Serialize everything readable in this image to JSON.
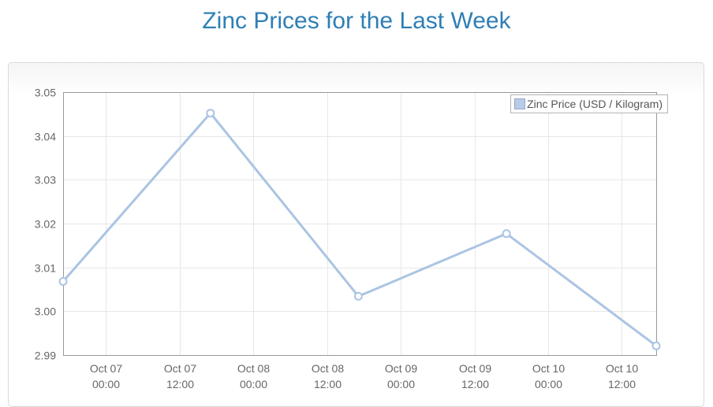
{
  "page": {
    "title": "Zinc Prices for the Last Week"
  },
  "colors": {
    "title_text": "#2e7fb5",
    "line": "#abc4e3",
    "marker_fill": "#ffffff",
    "marker_stroke": "#abc4e3",
    "legend_swatch_fill": "#b8cbe8",
    "legend_swatch_border": "#93a9c9",
    "gridline": "#e7e7e7",
    "plot_border": "#999999",
    "axis_text": "#666666",
    "panel_border": "#d9d9d9"
  },
  "chart_data": {
    "type": "line",
    "title": "Zinc Prices for the Last Week",
    "xlabel": "",
    "ylabel": "",
    "grid": true,
    "legend_position": "top-right",
    "y_axis": {
      "min": 2.99,
      "max": 3.05,
      "tick_step": 0.01,
      "tick_labels": [
        "3.05",
        "3.04",
        "3.03",
        "3.02",
        "3.01",
        "3.00",
        "2.99"
      ]
    },
    "x_axis": {
      "type": "time",
      "range_hours": [
        -7,
        89.6
      ],
      "ticks": [
        {
          "hours": 0,
          "date": "Oct 07",
          "time": "00:00"
        },
        {
          "hours": 12,
          "date": "Oct 07",
          "time": "12:00"
        },
        {
          "hours": 24,
          "date": "Oct 08",
          "time": "00:00"
        },
        {
          "hours": 36,
          "date": "Oct 08",
          "time": "12:00"
        },
        {
          "hours": 48,
          "date": "Oct 09",
          "time": "00:00"
        },
        {
          "hours": 60,
          "date": "Oct 09",
          "time": "12:00"
        },
        {
          "hours": 72,
          "date": "Oct 10",
          "time": "00:00"
        },
        {
          "hours": 84,
          "date": "Oct 10",
          "time": "12:00"
        }
      ]
    },
    "series": [
      {
        "name": "Zinc Price (USD / Kilogram)",
        "points": [
          {
            "t_hours": -7,
            "date": "Oct 06",
            "value": 3.0068
          },
          {
            "t_hours": 17,
            "date": "Oct 07",
            "value": 3.0452
          },
          {
            "t_hours": 41.1,
            "date": "Oct 08",
            "value": 3.0034
          },
          {
            "t_hours": 65.2,
            "date": "Oct 09",
            "value": 3.0177
          },
          {
            "t_hours": 89.6,
            "date": "Oct 10",
            "value": 2.9921
          }
        ]
      }
    ]
  }
}
